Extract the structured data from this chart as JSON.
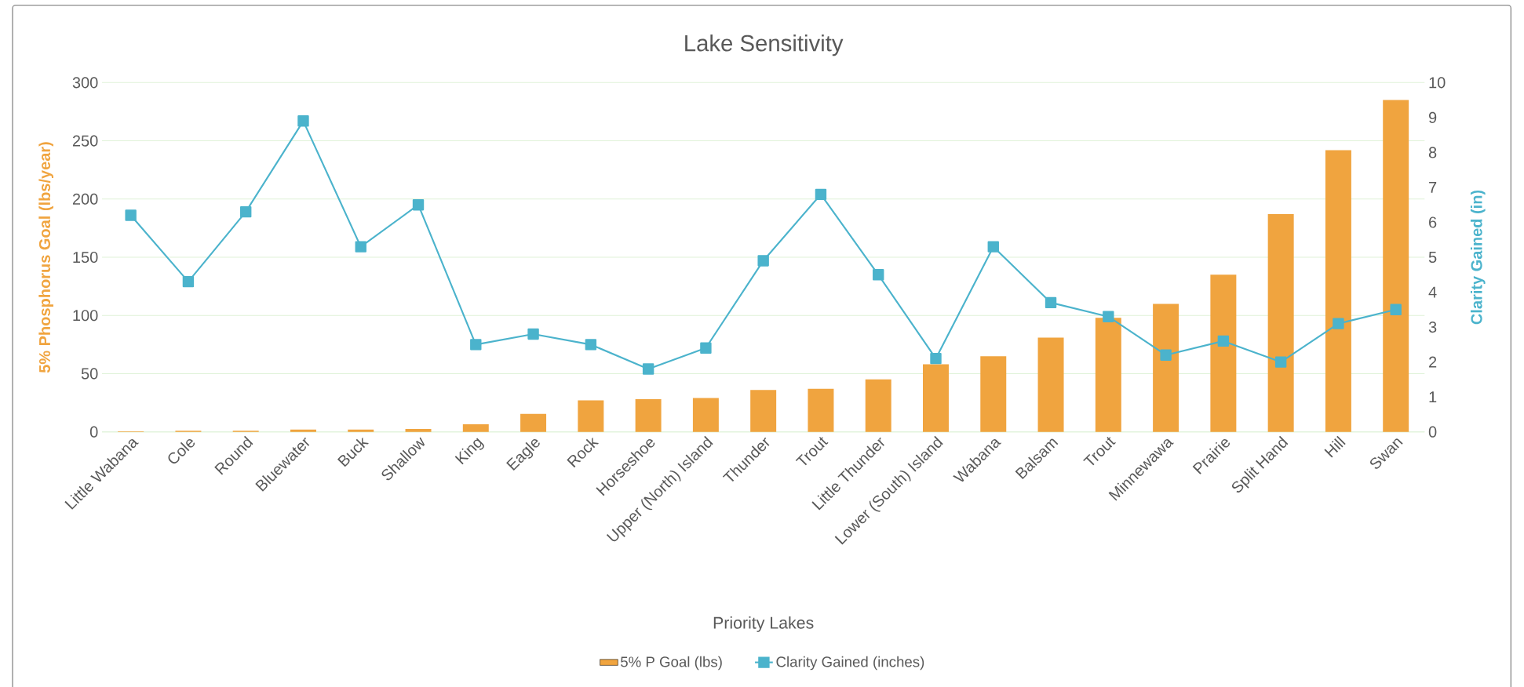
{
  "chart_data": {
    "type": "bar",
    "title": "Lake Sensitivity",
    "xlabel": "Priority Lakes",
    "ylabel": "5% Phosphorus Goal (lbs/year)",
    "y2label": "Clarity Gained (in)",
    "categories": [
      "Little Wabana",
      "Cole",
      "Round",
      "Bluewater",
      "Buck",
      "Shallow",
      "King",
      "Eagle",
      "Rock",
      "Horseshoe",
      "Upper (North) Island",
      "Thunder",
      "Trout",
      "Little Thunder",
      "Lower (South) Island",
      "Wabana",
      "Balsam",
      "Trout",
      "Minnewawa",
      "Prairie",
      "Split Hand",
      "Hill",
      "Swan"
    ],
    "series": [
      {
        "name": "5% P Goal (lbs)",
        "color": "#f0a43f",
        "values": [
          0.5,
          1,
          1,
          2,
          2,
          2.5,
          6.5,
          15.5,
          27,
          28,
          29,
          36,
          37,
          45,
          58,
          65,
          81,
          98,
          110,
          135,
          187,
          242,
          285
        ]
      },
      {
        "name": "Clarity Gained (inches)",
        "type": "line",
        "axis": "y2",
        "marker": "square",
        "color": "#4bb3cc",
        "values": [
          6.2,
          4.3,
          6.3,
          8.9,
          5.3,
          6.5,
          2.5,
          2.8,
          2.5,
          1.8,
          2.4,
          4.9,
          6.8,
          4.5,
          2.1,
          5.3,
          3.7,
          3.3,
          2.2,
          2.6,
          2.0,
          3.1,
          3.5
        ]
      }
    ],
    "ylim": [
      0,
      300
    ],
    "yticks": [
      0,
      50,
      100,
      150,
      200,
      250,
      300
    ],
    "y2lim": [
      0,
      10
    ],
    "y2ticks": [
      0,
      1,
      2,
      3,
      4,
      5,
      6,
      7,
      8,
      9,
      10
    ],
    "grid": "y",
    "legend": "bottom"
  }
}
